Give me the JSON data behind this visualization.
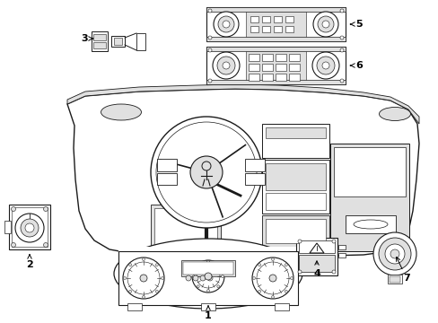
{
  "background_color": "#ffffff",
  "line_color": "#1a1a1a",
  "gray_fill": "#cccccc",
  "light_gray": "#e0e0e0",
  "fig_width": 4.89,
  "fig_height": 3.6,
  "dpi": 100
}
